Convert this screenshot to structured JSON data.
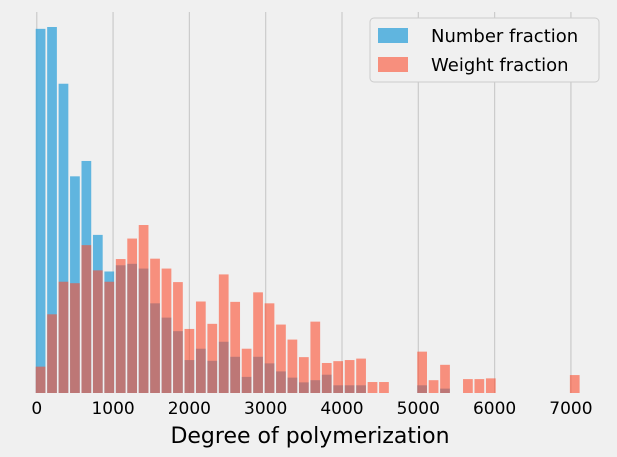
{
  "chart_data": {
    "type": "bar",
    "xlabel": "Degree of polymerization",
    "ylabel": "",
    "xlim": [
      -10,
      7250
    ],
    "ylim": [
      0,
      1
    ],
    "x_ticks": [
      "0",
      "1000",
      "2000",
      "3000",
      "4000",
      "5000",
      "6000",
      "7000"
    ],
    "grid": "vertical",
    "legend_position": "top-right",
    "series": [
      {
        "name": "Number fraction",
        "color": "#30a2da",
        "x": [
          50,
          200,
          350,
          500,
          650,
          800,
          950,
          1100,
          1250,
          1400,
          1550,
          1700,
          1850,
          2000,
          2150,
          2300,
          2450,
          2600,
          2750,
          2900,
          3050,
          3200,
          3350,
          3500,
          3650,
          3800,
          3950,
          4100,
          4250,
          5050,
          5350
        ],
        "values": [
          0.995,
          1.0,
          0.845,
          0.592,
          0.634,
          0.432,
          0.332,
          0.349,
          0.353,
          0.34,
          0.245,
          0.206,
          0.169,
          0.09,
          0.121,
          0.088,
          0.14,
          0.099,
          0.044,
          0.099,
          0.081,
          0.059,
          0.042,
          0.029,
          0.035,
          0.05,
          0.021,
          0.021,
          0.021,
          0.021,
          0.012
        ]
      },
      {
        "name": "Weight fraction",
        "color": "#fc4f30",
        "x": [
          50,
          200,
          350,
          500,
          650,
          800,
          950,
          1100,
          1250,
          1400,
          1550,
          1700,
          1850,
          2000,
          2150,
          2300,
          2450,
          2600,
          2750,
          2900,
          3050,
          3200,
          3350,
          3500,
          3650,
          3800,
          3950,
          4100,
          4250,
          4400,
          4550,
          5050,
          5200,
          5350,
          5650,
          5800,
          5950,
          7050
        ],
        "values": [
          0.072,
          0.215,
          0.304,
          0.3,
          0.404,
          0.335,
          0.304,
          0.366,
          0.422,
          0.459,
          0.367,
          0.34,
          0.303,
          0.175,
          0.25,
          0.189,
          0.324,
          0.249,
          0.121,
          0.275,
          0.245,
          0.187,
          0.146,
          0.098,
          0.195,
          0.082,
          0.087,
          0.09,
          0.094,
          0.03,
          0.03,
          0.113,
          0.035,
          0.077,
          0.038,
          0.038,
          0.04,
          0.049
        ]
      }
    ]
  }
}
